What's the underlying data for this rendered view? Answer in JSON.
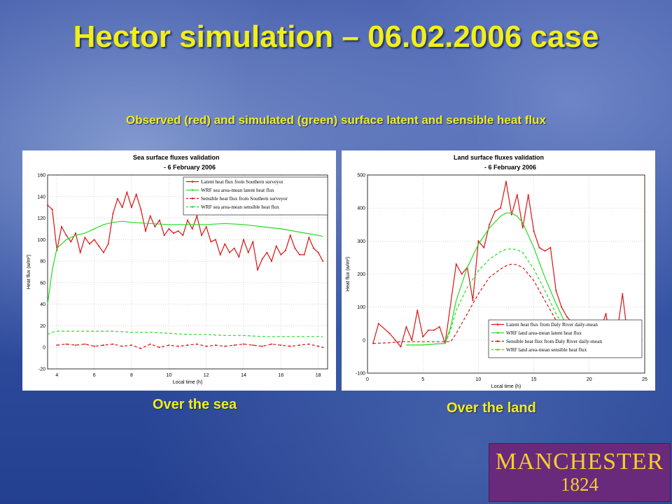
{
  "slide": {
    "title": "Hector simulation – 06.02.2006 case",
    "subtitle": "Observed (red) and simulated (green) surface latent and sensible heat flux",
    "caption_sea": "Over the sea",
    "caption_land": "Over the land",
    "logo_line1": "MANCHESTER",
    "logo_line2": "1824",
    "colors": {
      "title": "#f2ee1a",
      "observed": "#dd1111",
      "simulated": "#22dd22",
      "logo_bg": "#6a2a7c"
    }
  },
  "chart_data": [
    {
      "type": "line",
      "title": "Sea surface fluxes validation",
      "subtitle": "- 6 February 2006",
      "xlabel": "Local time (h)",
      "ylabel": "Heat flux (w/m²)",
      "xlim": [
        3.5,
        18.5
      ],
      "ylim": [
        -20,
        160
      ],
      "xticks": [
        4,
        6,
        8,
        10,
        12,
        14,
        16,
        18
      ],
      "yticks": [
        -20,
        0,
        20,
        40,
        60,
        80,
        100,
        120,
        140,
        160
      ],
      "grid": true,
      "legend_position": "top-right",
      "series": [
        {
          "name": "Latent heat flux from Southern surveyor",
          "color": "#dd1111",
          "style": "solid",
          "marker": true,
          "x": [
            3.5,
            3.75,
            4.0,
            4.25,
            4.5,
            4.75,
            5.0,
            5.25,
            5.5,
            5.75,
            6.0,
            6.25,
            6.5,
            6.75,
            7.0,
            7.25,
            7.5,
            7.75,
            8.0,
            8.25,
            8.5,
            8.75,
            9.0,
            9.25,
            9.5,
            9.75,
            10.0,
            10.25,
            10.5,
            10.75,
            11.0,
            11.25,
            11.5,
            11.75,
            12.0,
            12.25,
            12.5,
            12.75,
            13.0,
            13.25,
            13.5,
            13.75,
            14.0,
            14.25,
            14.5,
            14.75,
            15.0,
            15.25,
            15.5,
            15.75,
            16.0,
            16.25,
            16.5,
            16.75,
            17.0,
            17.25,
            17.5,
            17.75,
            18.0,
            18.25
          ],
          "y": [
            132,
            128,
            90,
            112,
            104,
            98,
            106,
            88,
            102,
            96,
            100,
            94,
            88,
            96,
            124,
            138,
            130,
            144,
            130,
            142,
            128,
            108,
            122,
            112,
            118,
            104,
            110,
            106,
            108,
            104,
            118,
            110,
            122,
            104,
            112,
            98,
            100,
            86,
            96,
            88,
            92,
            84,
            100,
            88,
            98,
            72,
            82,
            88,
            80,
            94,
            86,
            90,
            104,
            92,
            86,
            86,
            102,
            92,
            88,
            80
          ]
        },
        {
          "name": "WRF sea area-mean latent heat flux",
          "color": "#22dd22",
          "style": "solid",
          "marker": false,
          "x": [
            3.5,
            3.75,
            4.0,
            4.5,
            5.0,
            5.5,
            6.0,
            6.5,
            7.0,
            7.5,
            8.0,
            9.0,
            10.0,
            11.0,
            12.0,
            13.0,
            14.0,
            15.0,
            16.0,
            17.0,
            18.0,
            18.25
          ],
          "y": [
            40,
            72,
            92,
            100,
            104,
            106,
            110,
            114,
            116,
            117,
            116,
            115,
            114,
            114,
            114,
            115,
            114,
            112,
            110,
            107,
            104,
            103
          ]
        },
        {
          "name": "Sensible heat flux from Southern surveyor",
          "color": "#dd1111",
          "style": "dashed",
          "marker": true,
          "x": [
            4.0,
            4.5,
            5.0,
            5.5,
            6.0,
            6.5,
            7.0,
            7.5,
            8.0,
            8.5,
            9.0,
            9.5,
            10.0,
            10.5,
            11.0,
            11.5,
            12.0,
            12.5,
            13.0,
            13.5,
            14.0,
            14.5,
            15.0,
            15.5,
            16.0,
            16.5,
            17.0,
            17.5,
            18.0,
            18.25
          ],
          "y": [
            2,
            3,
            2,
            3,
            1,
            2,
            3,
            1,
            2,
            -1,
            3,
            0,
            2,
            1,
            2,
            3,
            1,
            2,
            1,
            2,
            3,
            2,
            1,
            3,
            2,
            1,
            2,
            3,
            1,
            0
          ]
        },
        {
          "name": "WRF sea area-mean sensible heat flux",
          "color": "#22dd22",
          "style": "dashed",
          "marker": false,
          "x": [
            3.5,
            3.75,
            4.0,
            5.0,
            6.0,
            7.0,
            8.0,
            9.0,
            10.0,
            11.0,
            12.0,
            13.0,
            14.0,
            15.0,
            16.0,
            17.0,
            18.0,
            18.25
          ],
          "y": [
            12,
            14,
            15,
            15,
            15,
            15,
            14,
            14,
            13,
            12,
            12,
            11,
            11,
            10,
            10,
            10,
            10,
            10
          ]
        }
      ]
    },
    {
      "type": "line",
      "title": "Land surface fluxes validation",
      "subtitle": "- 6 February 2006",
      "xlabel": "Local time (h)",
      "ylabel": "Heat flux (w/m²)",
      "xlim": [
        0,
        25
      ],
      "ylim": [
        -100,
        500
      ],
      "xticks": [
        0,
        5,
        10,
        15,
        20,
        25
      ],
      "yticks": [
        -100,
        0,
        100,
        200,
        300,
        400,
        500
      ],
      "grid": true,
      "legend_position": "bottom-right",
      "series": [
        {
          "name": "Latent heat flux from Daly River daily-mean",
          "color": "#dd1111",
          "style": "solid",
          "marker": true,
          "x": [
            0.5,
            1,
            2,
            2.5,
            3,
            3.5,
            4,
            4.5,
            5,
            5.5,
            6,
            6.5,
            7,
            8,
            8.5,
            9,
            9.5,
            10,
            10.5,
            11,
            11.5,
            12,
            12.5,
            13,
            13.5,
            14,
            14.5,
            15,
            15.5,
            16,
            16.5,
            17,
            17.5,
            18,
            19,
            20,
            21,
            21.5,
            22,
            22.5,
            23,
            23.5,
            24
          ],
          "y": [
            -10,
            50,
            20,
            0,
            -20,
            40,
            0,
            90,
            10,
            30,
            30,
            40,
            -10,
            230,
            200,
            220,
            120,
            300,
            280,
            350,
            390,
            400,
            480,
            380,
            440,
            340,
            440,
            330,
            280,
            270,
            280,
            150,
            100,
            70,
            30,
            20,
            30,
            80,
            -20,
            20,
            140,
            0,
            -30
          ]
        },
        {
          "name": "WRF land area-mean latent heat flux",
          "color": "#22dd22",
          "style": "solid",
          "marker": false,
          "x": [
            3.5,
            5,
            6,
            7,
            7.5,
            8,
            9,
            10,
            11,
            12,
            12.5,
            13,
            13.5,
            14,
            15,
            16,
            17,
            18,
            18.5
          ],
          "y": [
            -15,
            -15,
            -12,
            -10,
            40,
            120,
            220,
            290,
            340,
            375,
            385,
            385,
            375,
            355,
            280,
            190,
            110,
            40,
            10
          ]
        },
        {
          "name": "Sensible heat flux from Daly River daily-mean",
          "color": "#dd1111",
          "style": "dashed",
          "marker": false,
          "x": [
            0.5,
            2,
            3,
            4,
            5,
            6,
            7,
            7.5,
            8,
            9,
            10,
            11,
            12,
            12.5,
            13,
            13.5,
            14,
            15,
            16,
            17,
            17.5,
            18,
            19,
            20
          ],
          "y": [
            -10,
            -8,
            -5,
            -5,
            -5,
            -5,
            -5,
            -5,
            20,
            80,
            140,
            190,
            215,
            225,
            230,
            228,
            220,
            180,
            120,
            60,
            40,
            30,
            10,
            0
          ]
        },
        {
          "name": "WRF land area-mean sensible heat flux",
          "color": "#22dd22",
          "style": "dashed",
          "marker": false,
          "x": [
            3.5,
            5,
            6,
            7,
            7.5,
            8,
            9,
            10,
            11,
            12,
            12.5,
            13,
            13.5,
            14,
            15,
            16,
            17,
            18,
            18.5
          ],
          "y": [
            -15,
            -15,
            -12,
            -10,
            30,
            90,
            160,
            210,
            245,
            268,
            275,
            276,
            274,
            265,
            215,
            150,
            80,
            25,
            0
          ]
        }
      ]
    }
  ]
}
